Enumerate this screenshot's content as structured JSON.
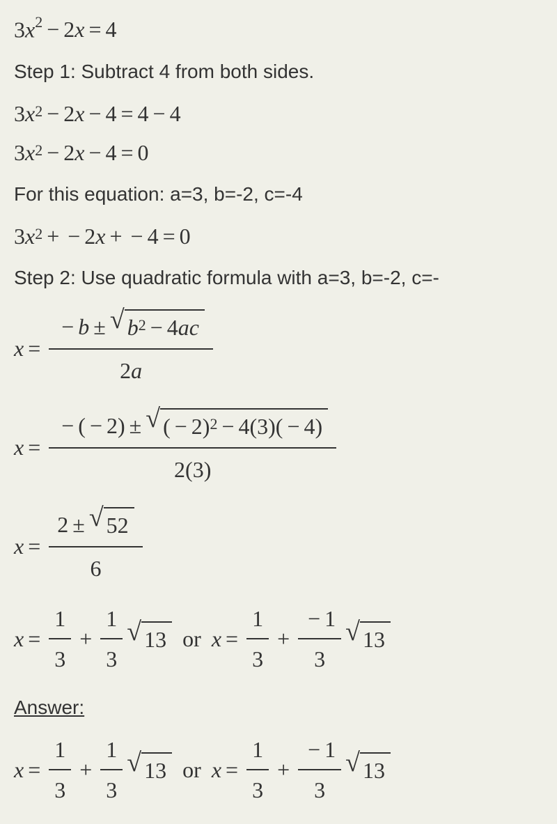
{
  "equation": {
    "coef_a": "3",
    "var_x": "x",
    "sup_2": "2",
    "minus": "−",
    "coef_b": "2",
    "eq": "=",
    "rhs": "4"
  },
  "step1": {
    "label": "Step 1: Subtract 4 from both sides.",
    "line1_lhs": "3x",
    "line1_sup": "2",
    "line1_mid": " − 2x − 4 = 4 − 4",
    "line2_lhs": "3x",
    "line2_sup": "2",
    "line2_mid": " − 2x − 4 = 0"
  },
  "coefficients": {
    "text": "For this equation: a=3, b=-2, c=-4",
    "a": "3",
    "b": "-2",
    "c": "-4"
  },
  "expanded": {
    "lhs": "3x",
    "sup": "2",
    "mid": " + − 2x + − 4 = 0"
  },
  "step2": {
    "label": "Step 2: Use quadratic formula with a=3, b=-2, c=-"
  },
  "formula": {
    "x": "x",
    "eq": " = ",
    "num_pre": "− b ± ",
    "sqrt_sign": "√",
    "sqrt_body_b": "b",
    "sqrt_body_sup": "2",
    "sqrt_body_rest": " − 4ac",
    "den": "2a"
  },
  "substituted": {
    "x": "x",
    "eq": " = ",
    "num_pre": "− (− 2) ± ",
    "sqrt_sign": "√",
    "sqrt_body": "(− 2)",
    "sqrt_sup": "2",
    "sqrt_rest": " − 4(3)(− 4)",
    "den": "2(3)"
  },
  "simplified": {
    "x": "x",
    "eq": " = ",
    "num": "2 ± ",
    "sqrt_sign": "√",
    "sqrt_body": "52",
    "den": "6"
  },
  "solutions": {
    "x": "x",
    "eq": " = ",
    "frac1_num": "1",
    "frac1_den": "3",
    "plus": " + ",
    "frac2_num": "1",
    "frac2_den": "3",
    "sqrt13_sign": "√",
    "sqrt13": "13",
    "or": " or ",
    "neg1": "−1",
    "one": "1",
    "three": "3"
  },
  "answer": {
    "label": "Answer:"
  },
  "colors": {
    "text": "#333333",
    "background": "#f0f0e8"
  },
  "fonts": {
    "math_family": "Times New Roman",
    "text_family": "Segoe UI",
    "math_size": 32,
    "text_size": 28
  }
}
